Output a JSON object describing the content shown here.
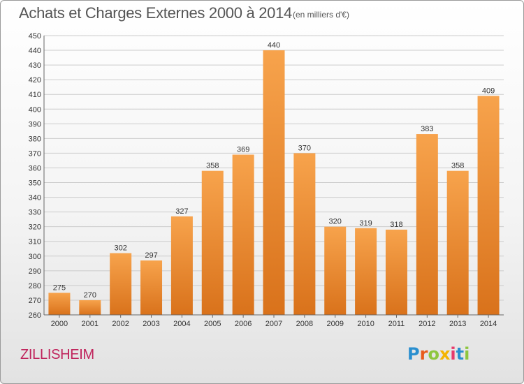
{
  "header": {
    "title": "Achats et Charges Externes 2000 à 2014",
    "subtitle": "(en milliers d'€)"
  },
  "footer": {
    "place": "ZILLISHEIM",
    "logo": {
      "letters": [
        "P",
        "r",
        "o",
        "x",
        "i",
        "t",
        "i"
      ],
      "colors": [
        "#2a8fcf",
        "#e85a1c",
        "#8dc63f",
        "#f4b400",
        "#e83a6b",
        "#2a8fcf",
        "#8dc63f"
      ]
    }
  },
  "chart_data": {
    "type": "bar",
    "title": "Achats et Charges Externes 2000 à 2014",
    "subtitle": "(en milliers d'€)",
    "categories": [
      "2000",
      "2001",
      "2002",
      "2003",
      "2004",
      "2005",
      "2006",
      "2007",
      "2008",
      "2009",
      "2010",
      "2011",
      "2012",
      "2013",
      "2014"
    ],
    "values": [
      275,
      270,
      302,
      297,
      327,
      358,
      369,
      440,
      370,
      320,
      319,
      318,
      383,
      358,
      409
    ],
    "ylim": [
      260,
      450
    ],
    "yticks": [
      260,
      270,
      280,
      290,
      300,
      310,
      320,
      330,
      340,
      350,
      360,
      370,
      380,
      390,
      400,
      410,
      420,
      430,
      440,
      450
    ],
    "xlabel": "",
    "ylabel": "",
    "grid": true,
    "colors": {
      "bar_top": "#f7a34c",
      "bar_bottom": "#d9721b",
      "grid": "#cccccc"
    }
  }
}
